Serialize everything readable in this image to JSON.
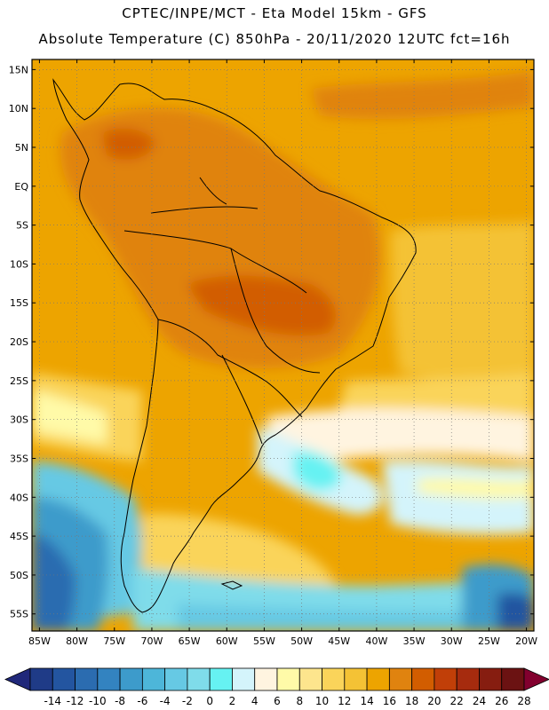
{
  "header": {
    "title_line1": "CPTEC/INPE/MCT  -   Eta Model 15km  -  GFS",
    "title_line2": "Absolute Temperature (C) 850hPa  -  20/11/2020 12UTC fct=16h"
  },
  "map": {
    "lat_labels": [
      "15N",
      "10N",
      "5N",
      "EQ",
      "5S",
      "10S",
      "15S",
      "20S",
      "25S",
      "30S",
      "35S",
      "40S",
      "45S",
      "50S",
      "55S"
    ],
    "lon_labels": [
      "85W",
      "80W",
      "75W",
      "70W",
      "65W",
      "60W",
      "55W",
      "50W",
      "45W",
      "40W",
      "35W",
      "30W",
      "25W",
      "20W"
    ],
    "lat_values": [
      15,
      10,
      5,
      0,
      -5,
      -10,
      -15,
      -20,
      -25,
      -30,
      -35,
      -40,
      -45,
      -50,
      -55
    ],
    "lon_values": [
      -85,
      -80,
      -75,
      -70,
      -65,
      -60,
      -55,
      -50,
      -45,
      -40,
      -35,
      -30,
      -25,
      -20
    ],
    "lat_range": [
      -57.2,
      16.3
    ],
    "lon_range": [
      -86.0,
      -19.0
    ]
  },
  "colorbar": {
    "labels": [
      "-14",
      "-12",
      "-10",
      "-8",
      "-6",
      "-4",
      "-2",
      "0",
      "2",
      "4",
      "6",
      "8",
      "10",
      "12",
      "14",
      "16",
      "18",
      "20",
      "22",
      "24",
      "26",
      "28"
    ],
    "colors": [
      "#1f3b87",
      "#2355a0",
      "#2b6cb0",
      "#3383c0",
      "#3d9bcb",
      "#4db6d9",
      "#66c9e4",
      "#7fdcea",
      "#66f2f2",
      "#d4f4fb",
      "#fff4e0",
      "#fffaa8",
      "#fde58d",
      "#fad45a",
      "#f4c235",
      "#eda400",
      "#e0830f",
      "#d25d00",
      "#c13f08",
      "#a62b0e",
      "#861d10",
      "#6b1212"
    ],
    "under_color": "#20287a",
    "over_color": "#82002e"
  }
}
